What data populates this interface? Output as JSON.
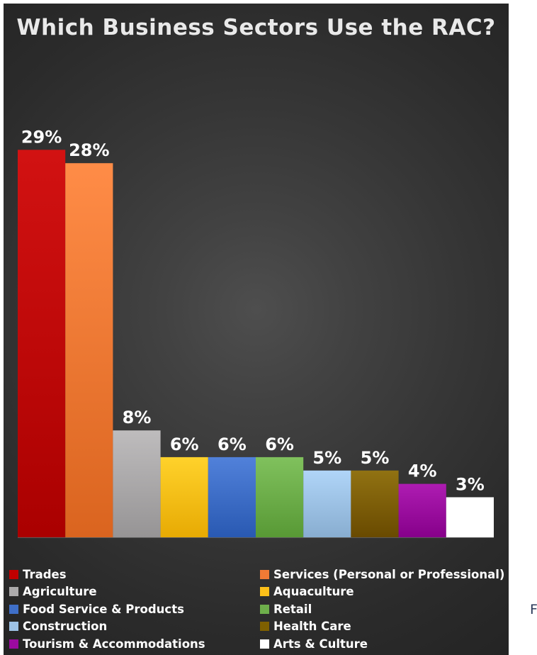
{
  "chart_data": {
    "type": "bar",
    "title": "Which Business Sectors Use the RAC?",
    "xlabel": "",
    "ylabel": "",
    "ylim": [
      0,
      30
    ],
    "grid": false,
    "legend_position": "bottom",
    "categories": [
      "Trades",
      "Services (Personal or Professional)",
      "Agriculture",
      "Aquaculture",
      "Food Service & Products",
      "Retail",
      "Construction",
      "Health Care",
      "Tourism & Accommodations",
      "Arts & Culture"
    ],
    "values": [
      29,
      28,
      8,
      6,
      6,
      6,
      5,
      5,
      4,
      3
    ],
    "data_labels": [
      "29%",
      "28%",
      "8%",
      "6%",
      "6%",
      "6%",
      "5%",
      "5%",
      "4%",
      "3%"
    ],
    "colors": [
      "#c00000",
      "#f07a35",
      "#acaaab",
      "#fdc019",
      "#3f6fc8",
      "#6eaf4b",
      "#9ec3e6",
      "#7f6000",
      "#9c0aa0",
      "#ffffff"
    ],
    "legend": [
      "Trades",
      "Services (Personal or Professional)",
      "Agriculture",
      "Aquaculture",
      "Food Service & Products",
      "Retail",
      "Construction",
      "Health Care",
      "Tourism & Accommodations",
      "Arts & Culture"
    ]
  },
  "side_text": "F"
}
